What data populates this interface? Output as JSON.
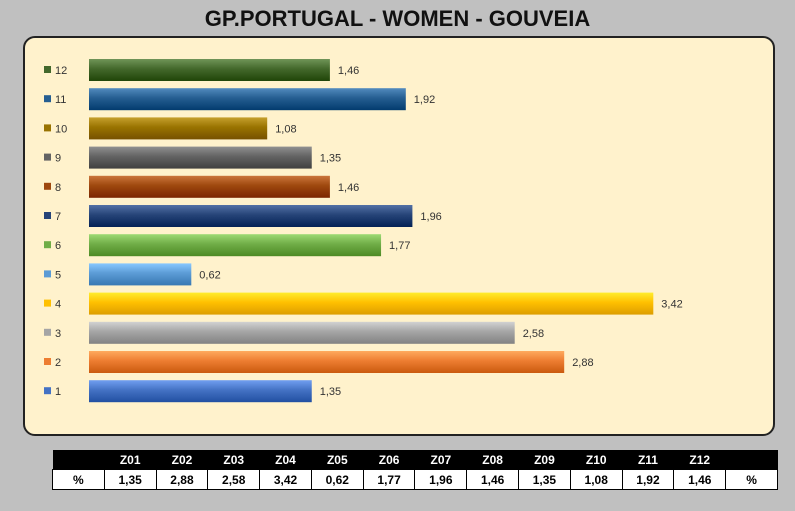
{
  "title": "GP.PORTUGAL - WOMEN - GOUVEIA",
  "chart_data": {
    "type": "bar",
    "orientation": "horizontal",
    "categories": [
      "1",
      "2",
      "3",
      "4",
      "5",
      "6",
      "7",
      "8",
      "9",
      "10",
      "11",
      "12"
    ],
    "values": [
      1.35,
      2.88,
      2.58,
      3.42,
      0.62,
      1.77,
      1.96,
      1.46,
      1.35,
      1.08,
      1.92,
      1.46
    ],
    "value_labels": [
      "1,35",
      "2,88",
      "2,58",
      "3,42",
      "0,62",
      "1,77",
      "1,96",
      "1,46",
      "1,35",
      "1,08",
      "1,92",
      "1,46"
    ],
    "colors": [
      "#4472c4",
      "#ed7d31",
      "#a5a5a5",
      "#ffc000",
      "#5b9bd5",
      "#70ad47",
      "#264478",
      "#9e480e",
      "#636363",
      "#997300",
      "#255e91",
      "#43682b"
    ],
    "legend": "left",
    "grid": false,
    "xlim": [
      0,
      3.42
    ]
  },
  "table": {
    "headers": [
      "",
      "Z01",
      "Z02",
      "Z03",
      "Z04",
      "Z05",
      "Z06",
      "Z07",
      "Z08",
      "Z09",
      "Z10",
      "Z11",
      "Z12",
      ""
    ],
    "row": [
      "%",
      "1,35",
      "2,88",
      "2,58",
      "3,42",
      "0,62",
      "1,77",
      "1,96",
      "1,46",
      "1,35",
      "1,08",
      "1,92",
      "1,46",
      "%"
    ]
  }
}
